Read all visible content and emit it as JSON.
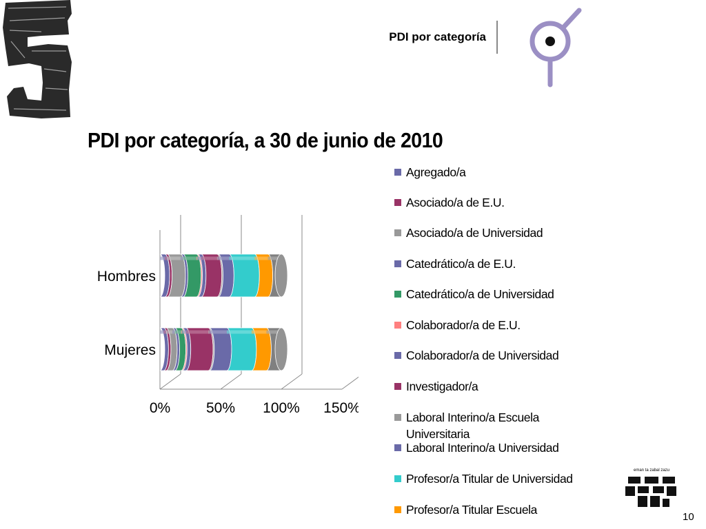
{
  "header": {
    "title": "PDI por categoría"
  },
  "footer": {
    "page_number": "10",
    "logo_motto": "eman ta zabal zazu"
  },
  "chart_data": {
    "type": "bar",
    "orientation": "horizontal",
    "stacking": "percent",
    "style": "3d-cylinder",
    "title": "PDI por categoría, a 30 de junio de 2010",
    "categories": [
      "Hombres",
      "Mujeres"
    ],
    "x_ticks": [
      "0%",
      "50%",
      "100%",
      "150%"
    ],
    "xlim": [
      0,
      150
    ],
    "grid": true,
    "legend_position": "right",
    "series": [
      {
        "name": "Agregado/a",
        "color": "#6a6aa8",
        "values": [
          4,
          3
        ]
      },
      {
        "name": "Asociado/a de E.U.",
        "color": "#993366",
        "values": [
          2,
          2
        ]
      },
      {
        "name": "Asociado/a de Universidad",
        "color": "#999999",
        "values": [
          11,
          5
        ]
      },
      {
        "name": "Catedrático/a de E.U.",
        "color": "#6a6aa8",
        "values": [
          2,
          2
        ]
      },
      {
        "name": "Catedrático/a de Universidad",
        "color": "#339966",
        "values": [
          11,
          5
        ]
      },
      {
        "name": "Colaborador/a de E.U.",
        "color": "#ff8080",
        "values": [
          1,
          1
        ]
      },
      {
        "name": "Colaborador/a de Universidad",
        "color": "#6a6aa8",
        "values": [
          3,
          3
        ]
      },
      {
        "name": "Investigador/a",
        "color": "#993366",
        "values": [
          13,
          18
        ]
      },
      {
        "name": "Laboral Interino/a Escuela Universitaria",
        "color": "#999999",
        "values": [
          1,
          1
        ]
      },
      {
        "name": "Laboral Interino/a Universidad",
        "color": "#6a6aa8",
        "values": [
          9,
          14
        ]
      },
      {
        "name": "Profesor/a Titular de Universidad",
        "color": "#33cccc",
        "values": [
          21,
          20
        ]
      },
      {
        "name": "Profesor/a Titular Escuela",
        "color": "#ff9900",
        "values": [
          11,
          12
        ]
      },
      {
        "name": "",
        "color": "#808080",
        "values": [
          11,
          12
        ]
      }
    ]
  }
}
